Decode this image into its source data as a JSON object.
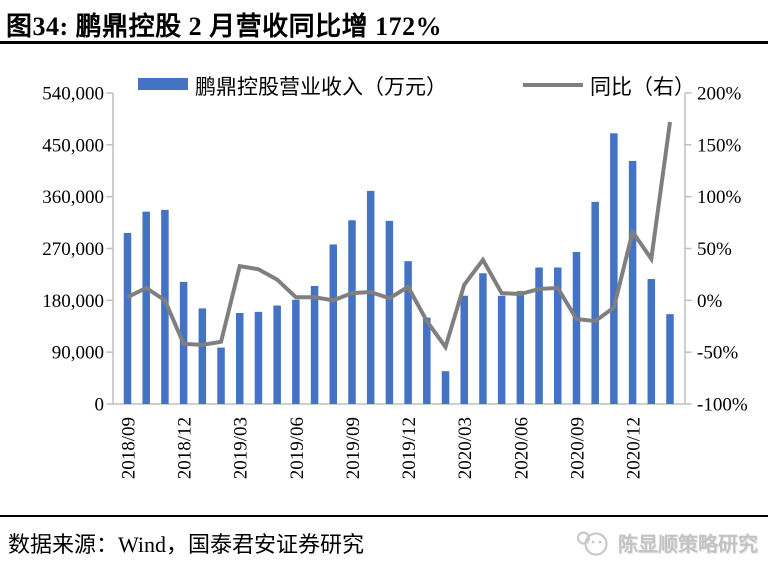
{
  "header": {
    "title": "图34: 鹏鼎控股 2 月营收同比增 172%"
  },
  "legend": {
    "bar_label": "鹏鼎控股营业收入（万元）",
    "line_label": "同比（右）"
  },
  "colors": {
    "bar": "#4472C4",
    "line": "#7F7F7F",
    "axis": "#BFBFBF",
    "watermark": "#c3c3c3"
  },
  "chart_data": {
    "type": "bar",
    "title": "鹏鼎控股营业收入与同比增速",
    "categories": [
      "2018/09",
      "2018/10",
      "2018/11",
      "2018/12",
      "2019/01",
      "2019/02",
      "2019/03",
      "2019/04",
      "2019/05",
      "2019/06",
      "2019/07",
      "2019/08",
      "2019/09",
      "2019/10",
      "2019/11",
      "2019/12",
      "2020/01",
      "2020/02",
      "2020/03",
      "2020/04",
      "2020/05",
      "2020/06",
      "2020/07",
      "2020/08",
      "2020/09",
      "2020/10",
      "2020/11",
      "2020/12",
      "2021/01",
      "2021/02"
    ],
    "series": [
      {
        "name": "鹏鼎控股营业收入（万元）",
        "type": "bar",
        "axis": "left",
        "color": "#4472C4",
        "values": [
          297000,
          334000,
          337000,
          212000,
          166000,
          98000,
          158000,
          160000,
          171000,
          181000,
          205000,
          277000,
          319000,
          370000,
          318000,
          248000,
          150000,
          57000,
          188000,
          227000,
          188000,
          196000,
          237000,
          237000,
          264000,
          351000,
          470000,
          422000,
          217000,
          156000
        ]
      },
      {
        "name": "同比（右）",
        "type": "line",
        "axis": "right",
        "color": "#7F7F7F",
        "values": [
          3,
          12,
          0,
          -42,
          -43,
          -40,
          33,
          30,
          20,
          3,
          3,
          0,
          7,
          8,
          2,
          13,
          -20,
          -45,
          15,
          39,
          7,
          6,
          11,
          12,
          -18,
          -20,
          -7,
          66,
          40,
          172
        ]
      }
    ],
    "left_axis": {
      "min": 0,
      "max": 540000,
      "tick_values": [
        0,
        90000,
        180000,
        270000,
        360000,
        450000,
        540000
      ],
      "ticks": [
        "0",
        "90,000",
        "180,000",
        "270,000",
        "360,000",
        "450,000",
        "540,000"
      ]
    },
    "right_axis": {
      "min": -100,
      "max": 200,
      "tick_values": [
        -100,
        -50,
        0,
        50,
        100,
        150,
        200
      ],
      "ticks": [
        "-100%",
        "-50%",
        "0%",
        "50%",
        "100%",
        "150%",
        "200%"
      ]
    },
    "x_tick_every": 3,
    "grid": false,
    "legend_position": "top"
  },
  "footer": {
    "source": "数据来源：Wind，国泰君安证券研究"
  },
  "watermark": {
    "label": "陈显顺策略研究"
  }
}
